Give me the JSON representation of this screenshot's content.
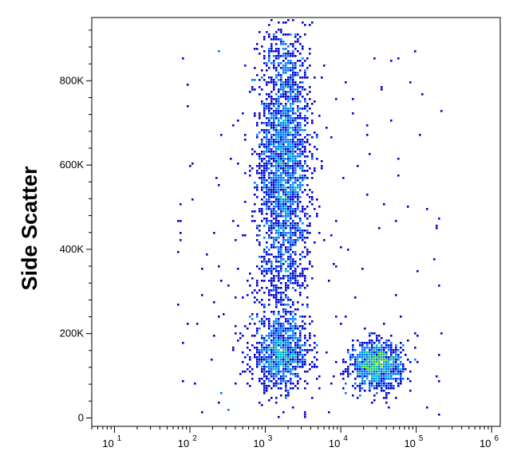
{
  "chart_data": {
    "type": "scatter",
    "style": "flow-cytometry density dot plot (pseudocolor)",
    "title": "",
    "xlabel": "",
    "ylabel": "Side Scatter",
    "x_scale": "log",
    "xlim": [
      5,
      1300000
    ],
    "ylim": [
      -20000,
      950000
    ],
    "x_ticks": [
      {
        "base": "10",
        "exp": "1",
        "value": 10
      },
      {
        "base": "10",
        "exp": "2",
        "value": 100
      },
      {
        "base": "10",
        "exp": "3",
        "value": 1000
      },
      {
        "base": "10",
        "exp": "4",
        "value": 10000
      },
      {
        "base": "10",
        "exp": "5",
        "value": 100000
      },
      {
        "base": "10",
        "exp": "6",
        "value": 1000000
      }
    ],
    "y_ticks": [
      {
        "label": "0",
        "value": 0
      },
      {
        "label": "200K",
        "value": 200000
      },
      {
        "label": "400K",
        "value": 400000
      },
      {
        "label": "600K",
        "value": 600000
      },
      {
        "label": "800K",
        "value": 800000
      }
    ],
    "density_colors": [
      "#0000cc",
      "#0077ff",
      "#00bfbf",
      "#33cc33",
      "#ccdd00",
      "#ff9900",
      "#ee0000"
    ],
    "populations": [
      {
        "x_center": 1800,
        "y_center": 620000,
        "y_spread": 160000,
        "log_x_spread": 0.17,
        "density": "high",
        "count_estimate": 2300
      },
      {
        "x_center": 1600,
        "y_center": 150000,
        "y_spread": 40000,
        "log_x_spread": 0.2,
        "density": "medium",
        "count_estimate": 900
      },
      {
        "x_center": 30000,
        "y_center": 125000,
        "y_spread": 28000,
        "log_x_spread": 0.17,
        "density": "high",
        "count_estimate": 1000
      }
    ],
    "grid": false,
    "legend": "none"
  }
}
